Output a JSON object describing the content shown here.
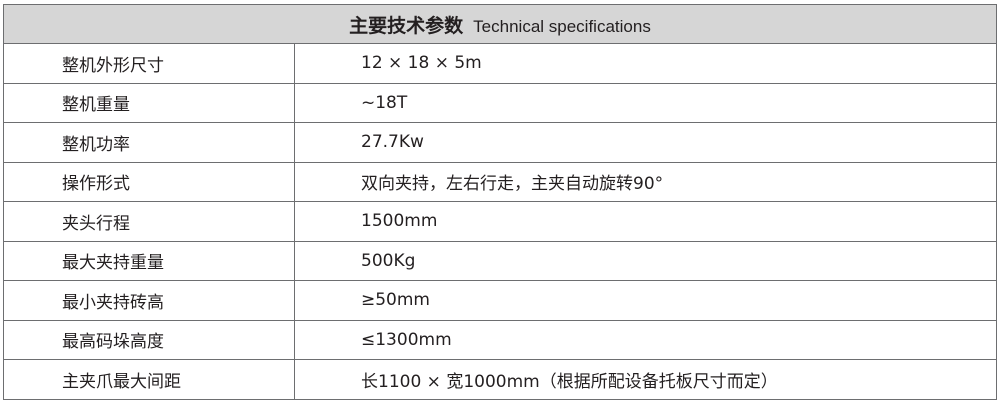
{
  "title_cn": "主要技术参数",
  "title_en": "Technical specifications",
  "rows": [
    {
      "label": "整机外形尺寸",
      "value": "12 × 18 × 5m"
    },
    {
      "label": "整机重量",
      "value": "~18T"
    },
    {
      "label": "整机功率",
      "value": "27.7Kw"
    },
    {
      "label": "操作形式",
      "value": "双向夹持，左右行走，主夹自动旋转90°"
    },
    {
      "label": "夹头行程",
      "value": "1500mm"
    },
    {
      "label": "最大夹持重量",
      "value": "500Kg"
    },
    {
      "label": "最小夹持砖高",
      "value": "≥50mm"
    },
    {
      "label": "最高码垛高度",
      "value": "≤1300mm"
    },
    {
      "label": "主夹爪最大间距",
      "value": "长1100 × 宽1000mm（根据所配设备托板尺寸而定）"
    }
  ]
}
